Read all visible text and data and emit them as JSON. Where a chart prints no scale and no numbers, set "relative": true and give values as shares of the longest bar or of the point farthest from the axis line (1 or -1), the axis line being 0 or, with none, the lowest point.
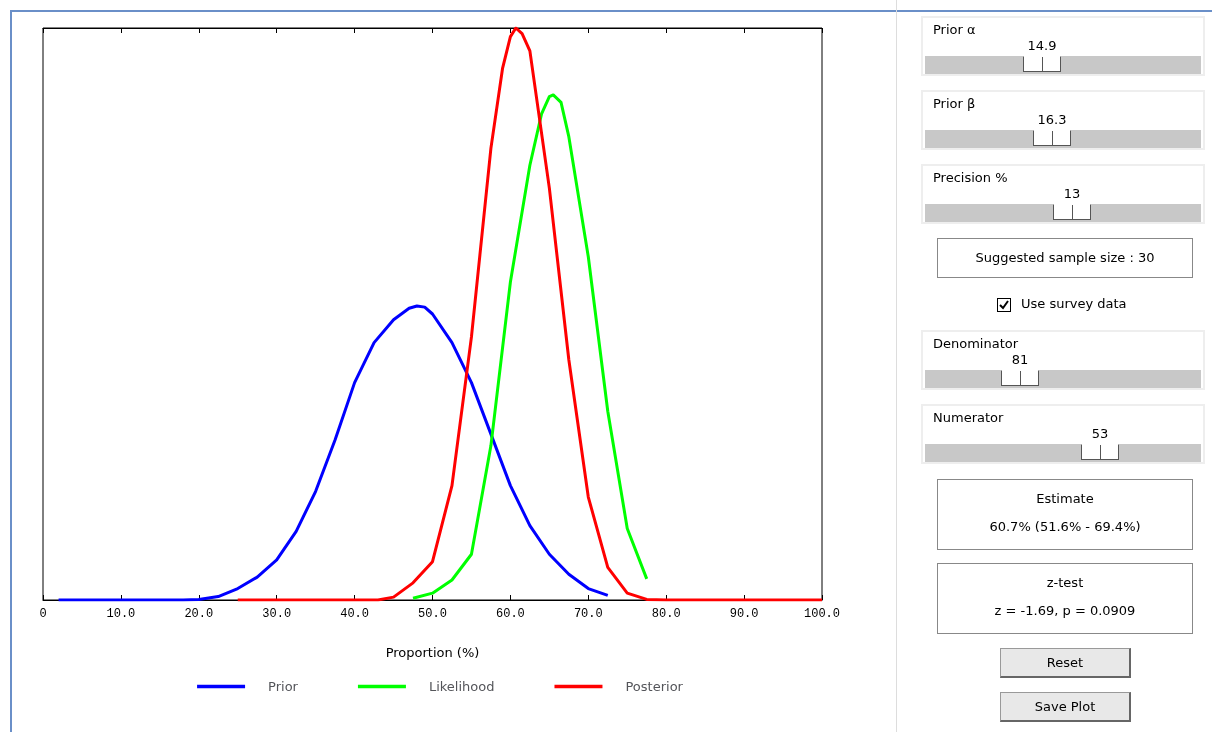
{
  "chart_data": [
    {
      "type": "line",
      "xlabel": "Proportion (%)",
      "relative": true,
      "legend": "bottom",
      "marker": "none",
      "line_style": "solid",
      "grid": false,
      "xlim": [
        0,
        100
      ],
      "xticks": [
        0,
        {
          "value": 10,
          "label": "10.0"
        },
        {
          "value": 20,
          "label": "20.0"
        },
        {
          "value": 30,
          "label": "30.0"
        },
        {
          "value": 40,
          "label": "40.0"
        },
        {
          "value": 50,
          "label": "50.0"
        },
        {
          "value": 60,
          "label": "60.0"
        },
        {
          "value": 70,
          "label": "70.0"
        },
        {
          "value": 80,
          "label": "80.0"
        },
        {
          "value": 90,
          "label": "90.0"
        },
        {
          "value": 100,
          "label": "100.0"
        }
      ],
      "series": [
        {
          "name": "Prior",
          "color": "#0000ff",
          "x": [
            2,
            10,
            18,
            20,
            22.5,
            25,
            27.5,
            30,
            32.5,
            35,
            37.5,
            40,
            42.5,
            45,
            47,
            48,
            49,
            50,
            52.5,
            55,
            57.5,
            60,
            62.5,
            65,
            67.5,
            70,
            72.5
          ],
          "values": [
            0,
            0,
            0,
            0.001,
            0.006,
            0.02,
            0.04,
            0.07,
            0.12,
            0.19,
            0.28,
            0.38,
            0.45,
            0.49,
            0.51,
            0.514,
            0.512,
            0.5,
            0.45,
            0.38,
            0.29,
            0.2,
            0.13,
            0.08,
            0.045,
            0.02,
            0.008
          ]
        },
        {
          "name": "Likelihood",
          "color": "#00ff00",
          "x": [
            47.5,
            50,
            52.5,
            55,
            57.5,
            60,
            62.5,
            64,
            65,
            65.5,
            66.5,
            67.5,
            70,
            72.5,
            75,
            77.5
          ],
          "values": [
            0.003,
            0.012,
            0.035,
            0.08,
            0.27,
            0.556,
            0.76,
            0.85,
            0.88,
            0.883,
            0.87,
            0.81,
            0.6,
            0.33,
            0.125,
            0.037
          ]
        },
        {
          "name": "Posterior",
          "color": "#ff0000",
          "x": [
            25,
            40,
            43,
            45,
            47.5,
            50,
            52.5,
            55,
            57.5,
            59,
            60,
            60.7,
            61.5,
            62.5,
            65,
            67.5,
            70,
            72.5,
            75,
            77.5,
            80,
            100
          ],
          "values": [
            0,
            0,
            0,
            0.005,
            0.03,
            0.067,
            0.2,
            0.46,
            0.79,
            0.93,
            0.985,
            1,
            0.99,
            0.96,
            0.72,
            0.42,
            0.18,
            0.057,
            0.012,
            0.001,
            0,
            0
          ]
        }
      ]
    },
    {
      "type": "other",
      "annotations": [
        "Prior α",
        "14.9",
        "Prior β",
        "16.3",
        "Precision %",
        "13",
        "Suggested sample size : 30",
        "Use survey data",
        "Denominator",
        "81",
        "Numerator",
        "53",
        "Estimate",
        "60.7% (51.6% - 69.4%)",
        "z-test",
        "z = -1.69, p = 0.0909",
        "Reset",
        "Save Plot"
      ]
    }
  ]
}
